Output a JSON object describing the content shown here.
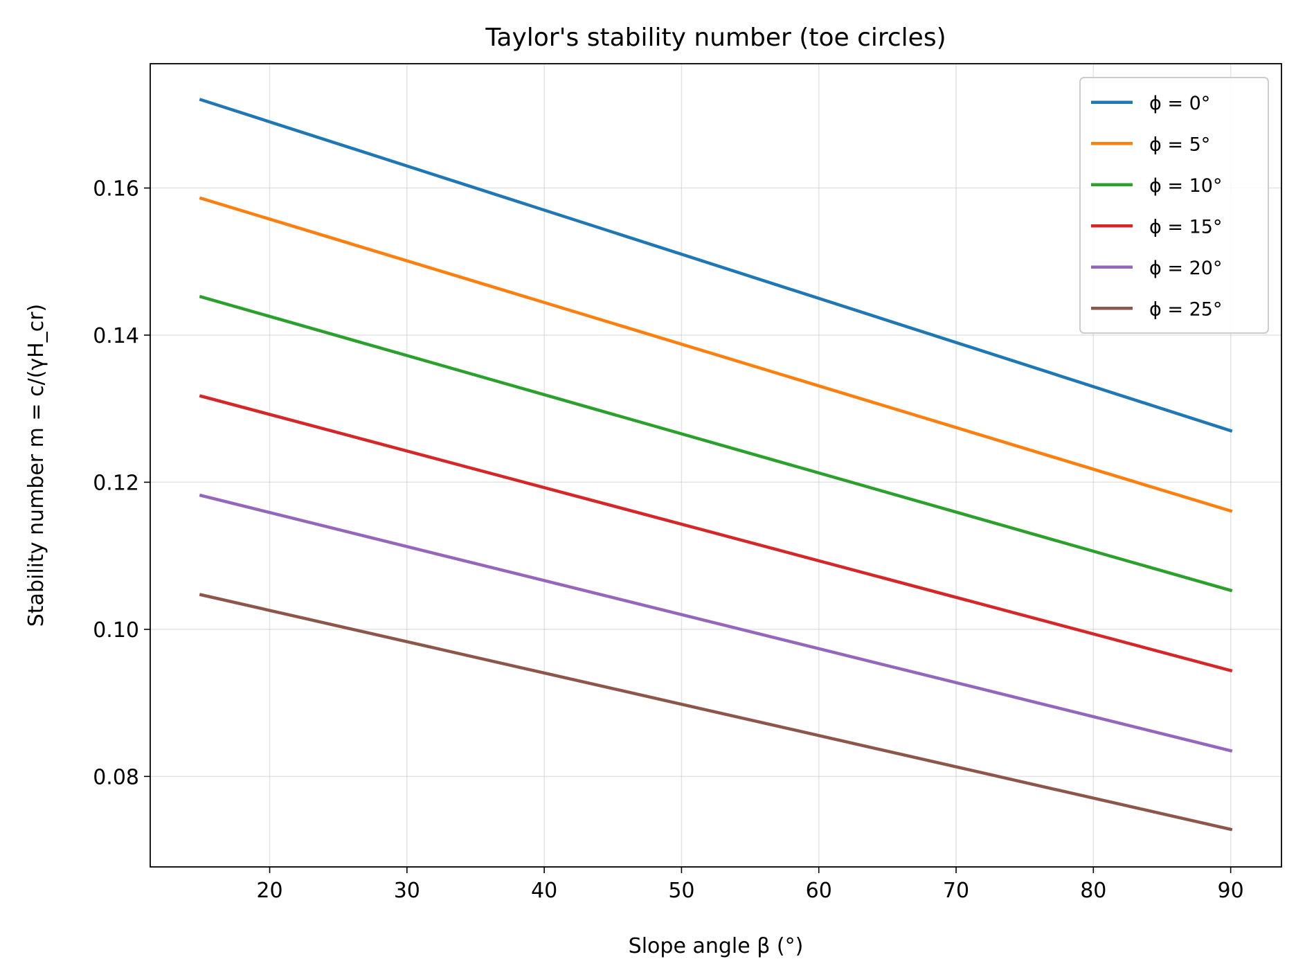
{
  "chart_data": {
    "type": "line",
    "title": "Taylor's stability number (toe circles)",
    "xlabel": "Slope angle β (°)",
    "ylabel": "Stability number m = c/(γH_cr)",
    "xlim": [
      11.3,
      93.7
    ],
    "ylim": [
      0.0677,
      0.1769
    ],
    "xticks": [
      20,
      30,
      40,
      50,
      60,
      70,
      80,
      90
    ],
    "yticks": [
      0.08,
      0.1,
      0.12,
      0.14,
      0.16
    ],
    "xtick_labels": [
      "20",
      "30",
      "40",
      "50",
      "60",
      "70",
      "80",
      "90"
    ],
    "ytick_labels": [
      "0.08",
      "0.10",
      "0.12",
      "0.14",
      "0.16"
    ],
    "grid": true,
    "legend": "top-right",
    "x": [
      15,
      90
    ],
    "series": [
      {
        "name": "ϕ = 0°",
        "color": "#1f77b4",
        "values": [
          0.172,
          0.127
        ]
      },
      {
        "name": "ϕ = 5°",
        "color": "#ff7f0e",
        "values": [
          0.1586,
          0.1161
        ]
      },
      {
        "name": "ϕ = 10°",
        "color": "#2ca02c",
        "values": [
          0.1452,
          0.1053
        ]
      },
      {
        "name": "ϕ = 15°",
        "color": "#d62728",
        "values": [
          0.1317,
          0.0944
        ]
      },
      {
        "name": "ϕ = 20°",
        "color": "#9467bd",
        "values": [
          0.1182,
          0.0835
        ]
      },
      {
        "name": "ϕ = 25°",
        "color": "#8c564b",
        "values": [
          0.1047,
          0.0728
        ]
      }
    ]
  }
}
